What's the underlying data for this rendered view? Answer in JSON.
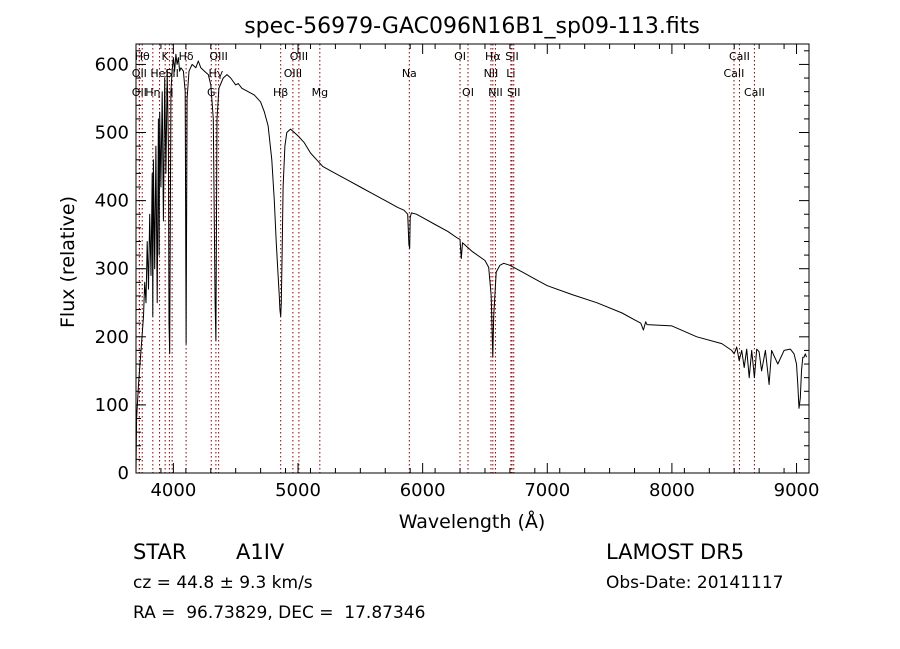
{
  "chart_data": {
    "type": "line",
    "title": "spec-56979-GAC096N16B1_sp09-113.fits",
    "xlabel": "Wavelength (Å)",
    "ylabel": "Flux (relative)",
    "xlim": [
      3700,
      9100
    ],
    "ylim": [
      0,
      630
    ],
    "xticks": [
      4000,
      5000,
      6000,
      7000,
      8000,
      9000
    ],
    "yticks": [
      0,
      100,
      200,
      300,
      400,
      500,
      600
    ],
    "grid": false,
    "line_color": "#000000",
    "marker_color": "#8b0000",
    "series": [
      {
        "x": [
          3700,
          3705,
          3720,
          3740,
          3760,
          3770,
          3780,
          3790,
          3800,
          3810,
          3820,
          3830,
          3835,
          3840,
          3850,
          3860,
          3870,
          3880,
          3885,
          3890,
          3900,
          3910,
          3920,
          3930,
          3940,
          3950,
          3960,
          3965,
          3970,
          3980,
          3990,
          4000,
          4010,
          4020,
          4030,
          4040,
          4050,
          4060,
          4080,
          4095,
          4102,
          4110,
          4125,
          4150,
          4180,
          4200,
          4220,
          4250,
          4280,
          4300,
          4320,
          4335,
          4341,
          4350,
          4365,
          4400,
          4430,
          4460,
          4480,
          4500,
          4520,
          4550,
          4600,
          4650,
          4700,
          4730,
          4760,
          4790,
          4810,
          4825,
          4840,
          4850,
          4855,
          4861,
          4866,
          4872,
          4880,
          4895,
          4910,
          4940,
          4970,
          5000,
          5050,
          5100,
          5150,
          5200,
          5300,
          5400,
          5500,
          5600,
          5700,
          5800,
          5850,
          5880,
          5890,
          5896,
          5900,
          5910,
          5950,
          6000,
          6100,
          6200,
          6280,
          6300,
          6310,
          6320,
          6400,
          6500,
          6530,
          6550,
          6563,
          6570,
          6590,
          6620,
          6650,
          6700,
          6800,
          6900,
          7000,
          7200,
          7400,
          7600,
          7700,
          7750,
          7771,
          7790,
          7800,
          8000,
          8200,
          8400,
          8480,
          8500,
          8520,
          8540,
          8560,
          8580,
          8600,
          8620,
          8640,
          8662,
          8680,
          8700,
          8720,
          8750,
          8780,
          8800,
          8850,
          8900,
          8950,
          8980,
          9000,
          9010,
          9020,
          9030,
          9040,
          9050,
          9060,
          9070,
          9080
        ],
        "y": [
          0,
          80,
          130,
          180,
          230,
          280,
          250,
          340,
          270,
          380,
          290,
          440,
          230,
          460,
          300,
          480,
          250,
          520,
          320,
          530,
          420,
          560,
          370,
          580,
          440,
          590,
          480,
          220,
          175,
          560,
          590,
          610,
          590,
          615,
          600,
          610,
          590,
          595,
          590,
          560,
          190,
          550,
          590,
          600,
          595,
          605,
          595,
          590,
          585,
          570,
          520,
          250,
          195,
          520,
          565,
          580,
          585,
          580,
          575,
          570,
          572,
          565,
          560,
          555,
          545,
          530,
          510,
          460,
          400,
          340,
          290,
          260,
          240,
          230,
          250,
          320,
          420,
          480,
          500,
          505,
          500,
          495,
          485,
          470,
          460,
          450,
          440,
          430,
          420,
          410,
          400,
          390,
          386,
          380,
          335,
          330,
          375,
          382,
          380,
          375,
          365,
          355,
          345,
          343,
          315,
          338,
          325,
          312,
          302,
          260,
          170,
          230,
          295,
          305,
          308,
          305,
          295,
          285,
          275,
          262,
          250,
          235,
          225,
          220,
          210,
          222,
          218,
          216,
          200,
          190,
          180,
          175,
          185,
          165,
          180,
          155,
          182,
          140,
          180,
          140,
          182,
          178,
          150,
          180,
          130,
          180,
          160,
          180,
          182,
          175,
          160,
          130,
          95,
          110,
          150,
          170,
          170,
          175,
          170
        ]
      }
    ],
    "line_markers": [
      {
        "label": "OII",
        "wl": 3727,
        "row": 2
      },
      {
        "label": "Hθ",
        "wl": 3750,
        "row": 0
      },
      {
        "label": "OII",
        "wl": 3727,
        "row": 1
      },
      {
        "label": "Hη",
        "wl": 3835,
        "row": 2
      },
      {
        "label": "HeI",
        "wl": 3889,
        "row": 1
      },
      {
        "label": "K",
        "wl": 3934,
        "row": 0
      },
      {
        "label": "H",
        "wl": 3968,
        "row": 2
      },
      {
        "label": "SII",
        "wl": 3990,
        "row": 1
      },
      {
        "label": "Hδ",
        "wl": 4102,
        "row": 0
      },
      {
        "label": "G",
        "wl": 4304,
        "row": 2
      },
      {
        "label": "Hγ",
        "wl": 4341,
        "row": 1
      },
      {
        "label": "OIII",
        "wl": 4363,
        "row": 0
      },
      {
        "label": "Hβ",
        "wl": 4861,
        "row": 2
      },
      {
        "label": "OIII",
        "wl": 4959,
        "row": 1
      },
      {
        "label": "OIII",
        "wl": 5007,
        "row": 0
      },
      {
        "label": "Mg",
        "wl": 5175,
        "row": 2
      },
      {
        "label": "Na",
        "wl": 5893,
        "row": 1
      },
      {
        "label": "OI",
        "wl": 6300,
        "row": 0
      },
      {
        "label": "OI",
        "wl": 6364,
        "row": 2
      },
      {
        "label": "NII",
        "wl": 6548,
        "row": 1
      },
      {
        "label": "Hα",
        "wl": 6563,
        "row": 0
      },
      {
        "label": "NII",
        "wl": 6584,
        "row": 2
      },
      {
        "label": "Li",
        "wl": 6708,
        "row": 1
      },
      {
        "label": "SII",
        "wl": 6717,
        "row": 0
      },
      {
        "label": "SII",
        "wl": 6731,
        "row": 2
      },
      {
        "label": "CaII",
        "wl": 8498,
        "row": 1
      },
      {
        "label": "CaII",
        "wl": 8542,
        "row": 0
      },
      {
        "label": "CaII",
        "wl": 8662,
        "row": 2
      }
    ]
  },
  "info": {
    "object_class": "STAR",
    "subclass": "A1IV",
    "survey": "LAMOST DR5",
    "cz": "cz = 44.8 ± 9.3 km/s",
    "obs_date": "Obs-Date: 20141117",
    "coords": "RA =  96.73829, DEC =  17.87346"
  }
}
